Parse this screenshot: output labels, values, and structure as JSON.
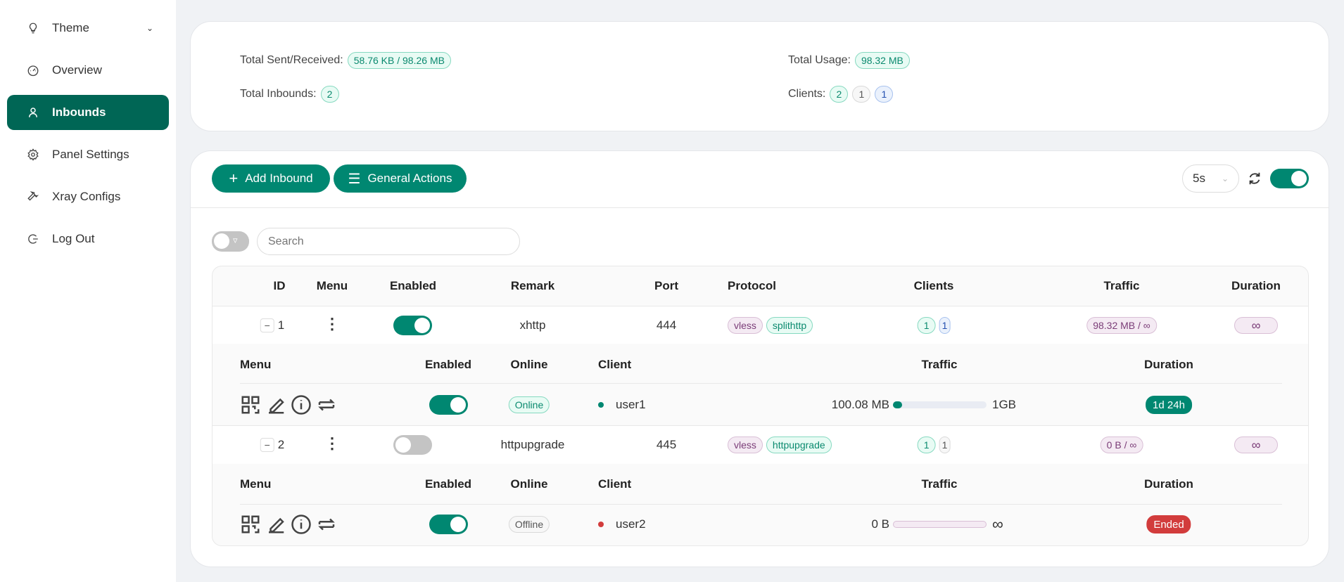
{
  "sidebar": {
    "items": [
      {
        "label": "Theme",
        "icon": "bulb-icon"
      },
      {
        "label": "Overview",
        "icon": "dashboard-icon"
      },
      {
        "label": "Inbounds",
        "icon": "user-icon",
        "active": true
      },
      {
        "label": "Panel Settings",
        "icon": "gear-icon"
      },
      {
        "label": "Xray Configs",
        "icon": "wrench-icon"
      },
      {
        "label": "Log Out",
        "icon": "logout-icon"
      }
    ]
  },
  "stats": {
    "sent_label": "Total Sent/Received:",
    "sent_value": "58.76 KB / 98.26 MB",
    "inbounds_label": "Total Inbounds:",
    "inbounds_value": "2",
    "usage_label": "Total Usage:",
    "usage_value": "98.32 MB",
    "clients_label": "Clients:",
    "clients_values": [
      "2",
      "1",
      "1"
    ]
  },
  "toolbar": {
    "add_label": "Add Inbound",
    "actions_label": "General Actions",
    "interval": "5s",
    "auto_refresh": true,
    "search_placeholder": "Search"
  },
  "table": {
    "headers": [
      "ID",
      "Menu",
      "Enabled",
      "Remark",
      "Port",
      "Protocol",
      "Clients",
      "Traffic",
      "Duration"
    ],
    "sub_headers": [
      "Menu",
      "Enabled",
      "Online",
      "Client",
      "Traffic",
      "Duration"
    ],
    "rows": [
      {
        "id": "1",
        "enabled": true,
        "remark": "xhttp",
        "port": "444",
        "protocol": "vless",
        "transport": "splithttp",
        "clients": [
          "1",
          "1"
        ],
        "traffic": "98.32 MB / ∞",
        "duration": "∞",
        "client": {
          "enabled": true,
          "online": "Online",
          "name": "user1",
          "used": "100.08 MB",
          "total": "1GB",
          "progress_percent": 10,
          "duration": "1d 24h"
        }
      },
      {
        "id": "2",
        "enabled": false,
        "remark": "httpupgrade",
        "port": "445",
        "protocol": "vless",
        "transport": "httpupgrade",
        "clients": [
          "1",
          "1"
        ],
        "traffic": "0 B / ∞",
        "duration": "∞",
        "client": {
          "enabled": true,
          "online": "Offline",
          "name": "user2",
          "used": "0 B",
          "total": "∞",
          "progress_percent": 0,
          "duration": "Ended"
        }
      }
    ]
  },
  "colors": {
    "primary": "#008771",
    "active_nav": "#006655",
    "online": "#008771",
    "offline": "#d23c3c",
    "ended": "#d23c3c"
  }
}
